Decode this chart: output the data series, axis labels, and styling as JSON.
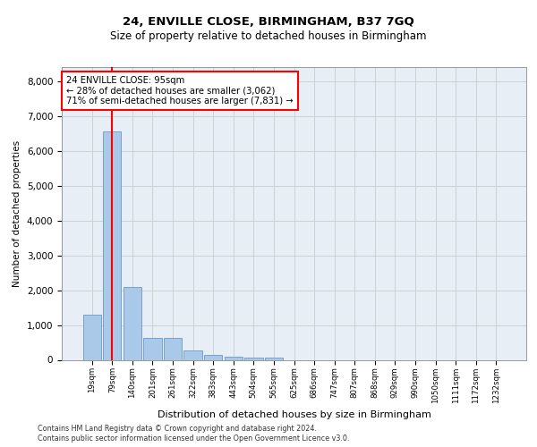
{
  "title1": "24, ENVILLE CLOSE, BIRMINGHAM, B37 7GQ",
  "title2": "Size of property relative to detached houses in Birmingham",
  "xlabel": "Distribution of detached houses by size in Birmingham",
  "ylabel": "Number of detached properties",
  "footer1": "Contains HM Land Registry data © Crown copyright and database right 2024.",
  "footer2": "Contains public sector information licensed under the Open Government Licence v3.0.",
  "categories": [
    "19sqm",
    "79sqm",
    "140sqm",
    "201sqm",
    "261sqm",
    "322sqm",
    "383sqm",
    "443sqm",
    "504sqm",
    "565sqm",
    "625sqm",
    "686sqm",
    "747sqm",
    "807sqm",
    "868sqm",
    "929sqm",
    "990sqm",
    "1050sqm",
    "1111sqm",
    "1172sqm",
    "1232sqm"
  ],
  "values": [
    1300,
    6550,
    2080,
    620,
    620,
    260,
    140,
    100,
    75,
    75,
    0,
    0,
    0,
    0,
    0,
    0,
    0,
    0,
    0,
    0,
    0
  ],
  "bar_color": "#aac8e8",
  "bar_edge_color": "#6699cc",
  "grid_color": "#cccccc",
  "bg_color": "#e8eef6",
  "annotation_box_text": "24 ENVILLE CLOSE: 95sqm\n← 28% of detached houses are smaller (3,062)\n71% of semi-detached houses are larger (7,831) →",
  "vline_x": 1,
  "vline_color": "red",
  "ylim": [
    0,
    8400
  ],
  "yticks": [
    0,
    1000,
    2000,
    3000,
    4000,
    5000,
    6000,
    7000,
    8000
  ]
}
